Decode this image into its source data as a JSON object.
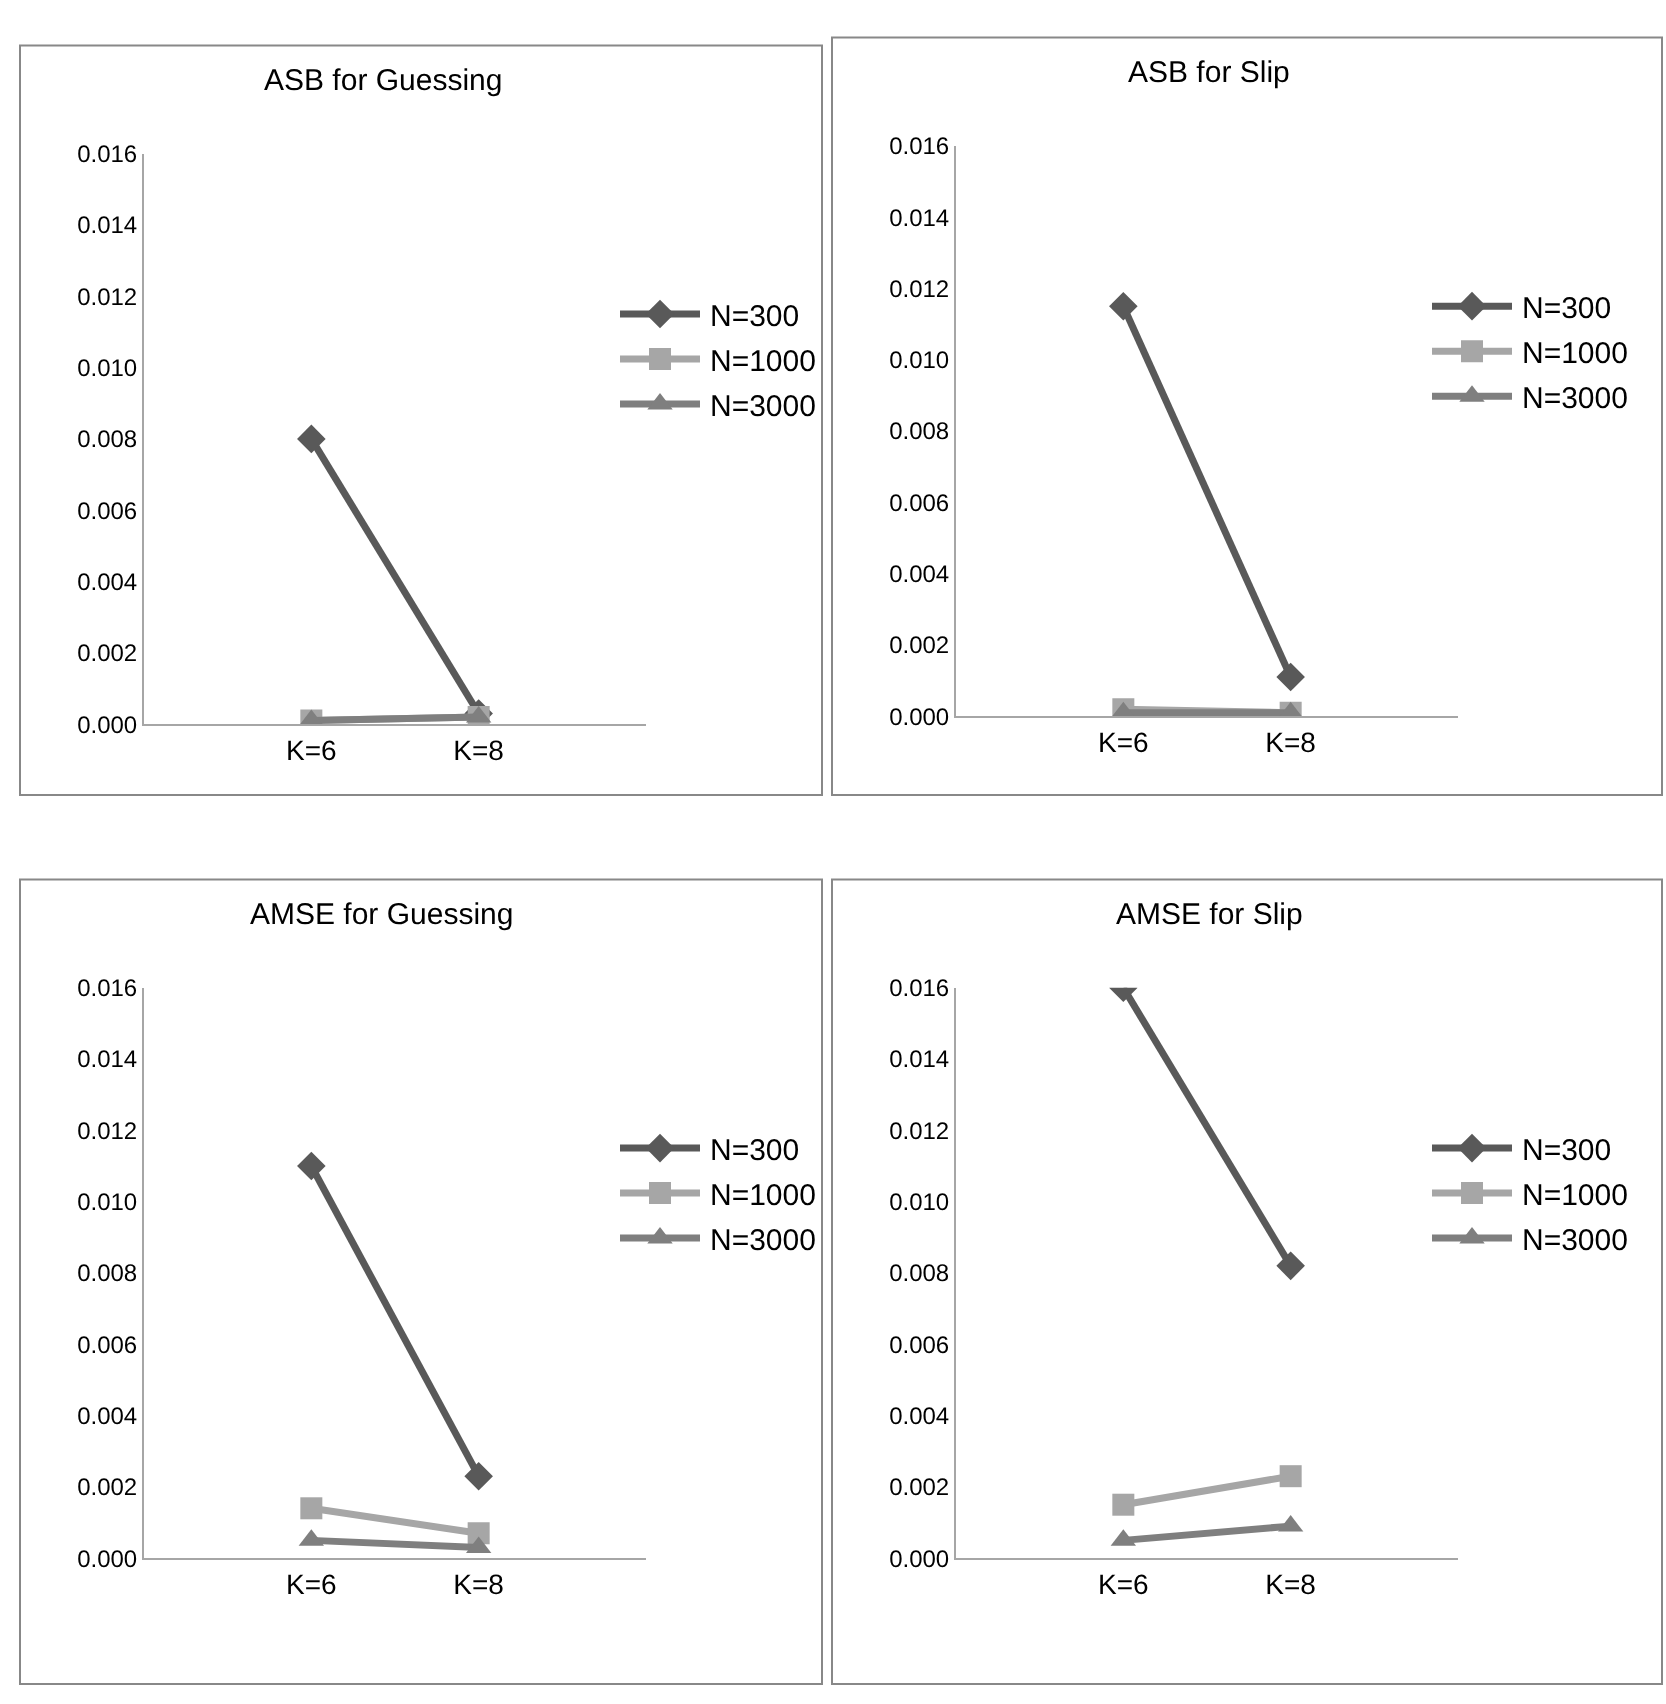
{
  "chart_data": [
    {
      "type": "line",
      "title": "ASB for Guessing",
      "categories": [
        "K=6",
        "K=8"
      ],
      "ylim": [
        0,
        0.016
      ],
      "yticks": [
        {
          "value": 0,
          "label": "0.000"
        },
        {
          "value": 0.002,
          "label": "0.002"
        },
        {
          "value": 0.004,
          "label": "0.004"
        },
        {
          "value": 0.006,
          "label": "0.006"
        },
        {
          "value": 0.008,
          "label": "0.008"
        },
        {
          "value": 0.01,
          "label": "0.010"
        },
        {
          "value": 0.012,
          "label": "0.012"
        },
        {
          "value": 0.014,
          "label": "0.014"
        },
        {
          "value": 0.016,
          "label": "0.016"
        }
      ],
      "legend": "right",
      "series": [
        {
          "name": "N=300",
          "color": "#595959",
          "marker": "diamond",
          "values": [
            0.008,
            0.0003
          ]
        },
        {
          "name": "N=1000",
          "color": "#a6a6a6",
          "marker": "square",
          "values": [
            0.0001,
            0.0002
          ]
        },
        {
          "name": "N=3000",
          "color": "#7f7f7f",
          "marker": "triangle",
          "values": [
            0.0001,
            0.0002
          ]
        }
      ]
    },
    {
      "type": "line",
      "title": "ASB for Slip",
      "categories": [
        "K=6",
        "K=8"
      ],
      "ylim": [
        0,
        0.016
      ],
      "yticks": [
        {
          "value": 0,
          "label": "0.000"
        },
        {
          "value": 0.002,
          "label": "0.002"
        },
        {
          "value": 0.004,
          "label": "0.004"
        },
        {
          "value": 0.006,
          "label": "0.006"
        },
        {
          "value": 0.008,
          "label": "0.008"
        },
        {
          "value": 0.01,
          "label": "0.010"
        },
        {
          "value": 0.012,
          "label": "0.012"
        },
        {
          "value": 0.014,
          "label": "0.014"
        },
        {
          "value": 0.016,
          "label": "0.016"
        }
      ],
      "legend": "right",
      "series": [
        {
          "name": "N=300",
          "color": "#595959",
          "marker": "diamond",
          "values": [
            0.0115,
            0.0011
          ]
        },
        {
          "name": "N=1000",
          "color": "#a6a6a6",
          "marker": "square",
          "values": [
            0.0002,
            0.0001
          ]
        },
        {
          "name": "N=3000",
          "color": "#7f7f7f",
          "marker": "triangle",
          "values": [
            0.0001,
            0.0001
          ]
        }
      ]
    },
    {
      "type": "line",
      "title": "AMSE for Guessing",
      "categories": [
        "K=6",
        "K=8"
      ],
      "ylim": [
        0,
        0.016
      ],
      "yticks": [
        {
          "value": 0,
          "label": "0.000"
        },
        {
          "value": 0.002,
          "label": "0.002"
        },
        {
          "value": 0.004,
          "label": "0.004"
        },
        {
          "value": 0.006,
          "label": "0.006"
        },
        {
          "value": 0.008,
          "label": "0.008"
        },
        {
          "value": 0.01,
          "label": "0.010"
        },
        {
          "value": 0.012,
          "label": "0.012"
        },
        {
          "value": 0.014,
          "label": "0.014"
        },
        {
          "value": 0.016,
          "label": "0.016"
        }
      ],
      "legend": "right",
      "series": [
        {
          "name": "N=300",
          "color": "#595959",
          "marker": "diamond",
          "values": [
            0.011,
            0.0023
          ]
        },
        {
          "name": "N=1000",
          "color": "#a6a6a6",
          "marker": "square",
          "values": [
            0.0014,
            0.0007
          ]
        },
        {
          "name": "N=3000",
          "color": "#7f7f7f",
          "marker": "triangle",
          "values": [
            0.0005,
            0.0003
          ]
        }
      ]
    },
    {
      "type": "line",
      "title": "AMSE for Slip",
      "categories": [
        "K=6",
        "K=8"
      ],
      "ylim": [
        0,
        0.016
      ],
      "yticks": [
        {
          "value": 0,
          "label": "0.000"
        },
        {
          "value": 0.002,
          "label": "0.002"
        },
        {
          "value": 0.004,
          "label": "0.004"
        },
        {
          "value": 0.006,
          "label": "0.006"
        },
        {
          "value": 0.008,
          "label": "0.008"
        },
        {
          "value": 0.01,
          "label": "0.010"
        },
        {
          "value": 0.012,
          "label": "0.012"
        },
        {
          "value": 0.014,
          "label": "0.014"
        },
        {
          "value": 0.016,
          "label": "0.016"
        }
      ],
      "legend": "right",
      "series": [
        {
          "name": "N=300",
          "color": "#595959",
          "marker": "diamond",
          "values": [
            0.016,
            0.0082
          ]
        },
        {
          "name": "N=1000",
          "color": "#a6a6a6",
          "marker": "square",
          "values": [
            0.0015,
            0.0023
          ]
        },
        {
          "name": "N=3000",
          "color": "#7f7f7f",
          "marker": "triangle",
          "values": [
            0.0005,
            0.0009
          ]
        }
      ]
    }
  ]
}
